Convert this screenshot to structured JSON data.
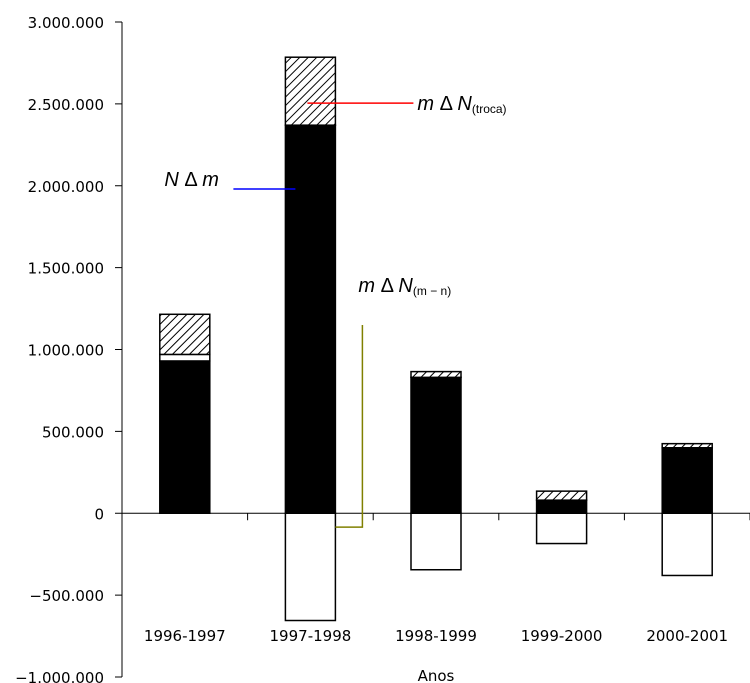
{
  "chart_data": {
    "type": "bar",
    "stacked": true,
    "xlabel": "Anos",
    "ylabel": "",
    "ylim": [
      -1000000,
      3000000
    ],
    "y_tick_step": 500000,
    "y_ticks": [
      "3.000.000",
      "2.500.000",
      "2.000.000",
      "1.500.000",
      "1.000.000",
      "500.000",
      "0",
      "−500.000",
      "−1.000.000"
    ],
    "grid": false,
    "categories": [
      "1996-1997",
      "1997-1998",
      "1998-1999",
      "1999-2000",
      "2000-2001"
    ],
    "series": [
      {
        "key": "n_delta_m",
        "values": [
          930000,
          2370000,
          830000,
          80000,
          400000
        ],
        "color": "#000000",
        "pattern": "solid"
      },
      {
        "key": "m_delta_n_mn",
        "values": [
          40000,
          -655000,
          -345000,
          -185000,
          -380000
        ],
        "color": "#ffffff",
        "pattern": "empty"
      },
      {
        "key": "m_delta_n_troca",
        "values": [
          245000,
          415000,
          35000,
          55000,
          25000
        ],
        "color": "#ffffff",
        "pattern": "hatch"
      }
    ],
    "annotations": [
      {
        "id": "troca",
        "var": "m",
        "delta": "Δ",
        "sym": "N",
        "sub": "(troca)",
        "line_color": "#ff0000",
        "target": "m_delta_n_troca"
      },
      {
        "id": "ndm",
        "var": "N",
        "delta": "Δ",
        "sym": "m",
        "sub": "",
        "line_color": "#0000ff",
        "target": "n_delta_m"
      },
      {
        "id": "mn",
        "var": "m",
        "delta": "Δ",
        "sym": "N",
        "sub": "(m − n)",
        "line_color": "#808000",
        "target": "m_delta_n_mn"
      }
    ]
  }
}
